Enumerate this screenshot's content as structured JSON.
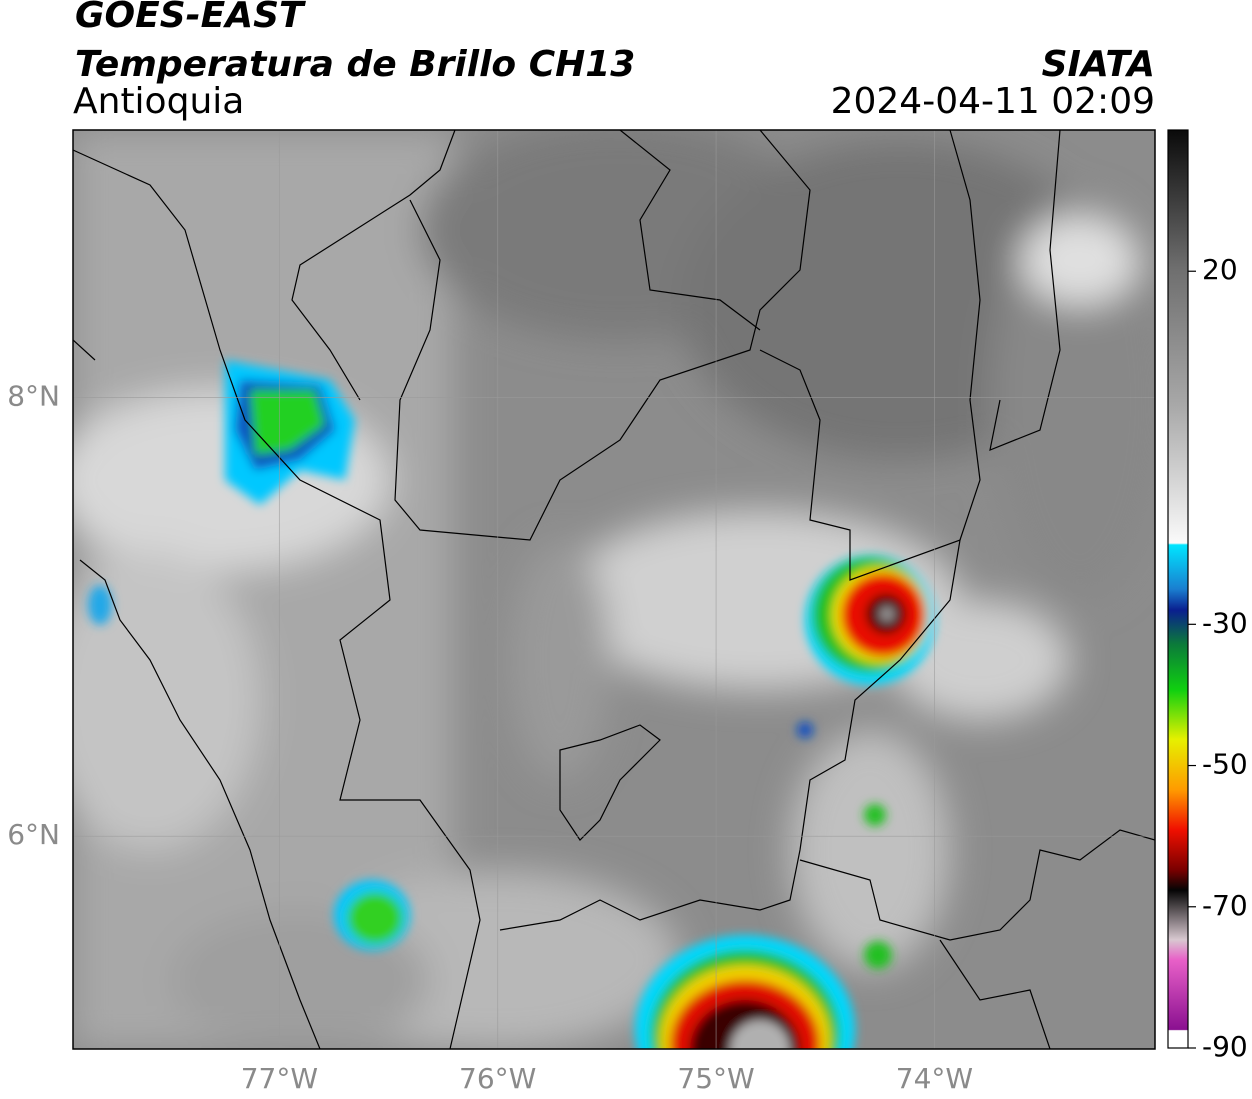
{
  "header": {
    "title": "GOES-EAST",
    "subtitle": "Temperatura de Brillo CH13",
    "region": "Antioquia",
    "source": "SIATA",
    "datetime": "2024-04-11 02:09"
  },
  "map": {
    "xlim": [
      -77.945,
      -72.99
    ],
    "ylim": [
      5.03,
      9.22
    ],
    "xticks": [
      {
        "value": -77,
        "label": "77°W"
      },
      {
        "value": -76,
        "label": "76°W"
      },
      {
        "value": -75,
        "label": "75°W"
      },
      {
        "value": -74,
        "label": "74°W"
      }
    ],
    "yticks": [
      {
        "value": 8,
        "label": "8°N"
      },
      {
        "value": 6,
        "label": "6°N"
      }
    ],
    "grid": true
  },
  "colorbar": {
    "lim": [
      -90,
      40
    ],
    "ticks": [
      20,
      -30,
      -50,
      -70,
      -90
    ]
  }
}
